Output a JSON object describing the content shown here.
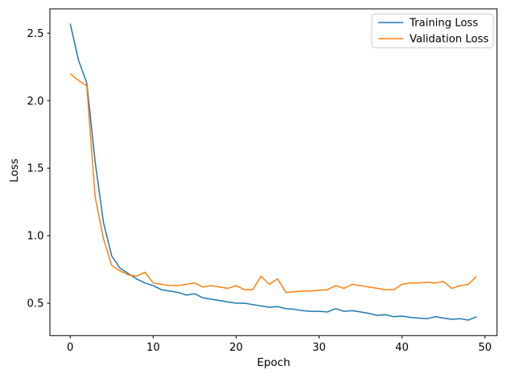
{
  "figure": {
    "background_color": "#ffffff",
    "spine_color": "#000000",
    "legend_border_color": "#cccccc"
  },
  "chart_data": {
    "type": "line",
    "title": "",
    "xlabel": "Epoch",
    "ylabel": "Loss",
    "x": [
      0,
      1,
      2,
      3,
      4,
      5,
      6,
      7,
      8,
      9,
      10,
      11,
      12,
      13,
      14,
      15,
      16,
      17,
      18,
      19,
      20,
      21,
      22,
      23,
      24,
      25,
      26,
      27,
      28,
      29,
      30,
      31,
      32,
      33,
      34,
      35,
      36,
      37,
      38,
      39,
      40,
      41,
      42,
      43,
      44,
      45,
      46,
      47,
      48,
      49
    ],
    "series": [
      {
        "name": "Training Loss",
        "color": "#1f77b4",
        "values": [
          2.57,
          2.3,
          2.13,
          1.55,
          1.1,
          0.85,
          0.76,
          0.72,
          0.68,
          0.65,
          0.63,
          0.6,
          0.59,
          0.58,
          0.56,
          0.57,
          0.54,
          0.53,
          0.52,
          0.51,
          0.5,
          0.5,
          0.49,
          0.48,
          0.47,
          0.475,
          0.46,
          0.455,
          0.445,
          0.44,
          0.44,
          0.435,
          0.46,
          0.44,
          0.445,
          0.435,
          0.425,
          0.41,
          0.415,
          0.4,
          0.405,
          0.395,
          0.39,
          0.385,
          0.4,
          0.39,
          0.38,
          0.385,
          0.375,
          0.4
        ]
      },
      {
        "name": "Validation Loss",
        "color": "#ff7f0e",
        "values": [
          2.2,
          2.15,
          2.11,
          1.29,
          0.98,
          0.78,
          0.74,
          0.71,
          0.7,
          0.73,
          0.65,
          0.64,
          0.63,
          0.63,
          0.64,
          0.65,
          0.62,
          0.63,
          0.62,
          0.61,
          0.63,
          0.6,
          0.6,
          0.7,
          0.64,
          0.68,
          0.58,
          0.585,
          0.59,
          0.59,
          0.595,
          0.6,
          0.63,
          0.61,
          0.64,
          0.63,
          0.62,
          0.61,
          0.6,
          0.6,
          0.64,
          0.65,
          0.65,
          0.655,
          0.65,
          0.66,
          0.61,
          0.63,
          0.64,
          0.7
        ]
      }
    ],
    "xlim": [
      -2.45,
      51.45
    ],
    "ylim": [
      0.26,
      2.68
    ],
    "xticks": [
      0,
      10,
      20,
      30,
      40,
      50
    ],
    "yticks": [
      0.5,
      1.0,
      1.5,
      2.0,
      2.5
    ],
    "grid": false,
    "legend_position": "upper right"
  }
}
